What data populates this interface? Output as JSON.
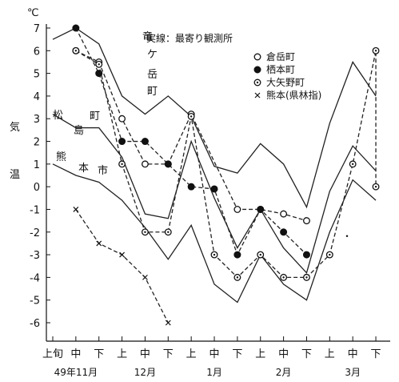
{
  "chart_data": {
    "type": "line",
    "title": "実線：最寄り観測所",
    "ylabel": [
      "気",
      "温"
    ],
    "yunit": "℃",
    "ylim": [
      -6,
      7
    ],
    "yticks": [
      "7",
      "6",
      "5",
      "4",
      "3",
      "2",
      "1",
      "0",
      "-1",
      "-2",
      "-3",
      "-4",
      "-5",
      "-6"
    ],
    "categories": [
      "上旬",
      "中",
      "下",
      "上",
      "中",
      "下",
      "上",
      "中",
      "下",
      "上",
      "中",
      "下",
      "上",
      "中",
      "下"
    ],
    "months": [
      "49年11月",
      "12月",
      "1月",
      "2月",
      "3月"
    ],
    "solid_series": [
      {
        "name": "竜ケ岳町",
        "values": [
          6.5,
          7.0,
          6.3,
          4.0,
          3.2,
          4.0,
          3.1,
          0.9,
          0.6,
          1.9,
          1.0,
          -0.9,
          2.8,
          5.5,
          4.0
        ]
      },
      {
        "name": "松島町",
        "values": [
          3.2,
          2.6,
          2.6,
          1.3,
          -1.2,
          -1.4,
          2.0,
          -0.5,
          -2.7,
          -1.0,
          -2.7,
          -3.8,
          -0.2,
          1.8,
          0.7
        ]
      },
      {
        "name": "熊本市",
        "values": [
          1.0,
          0.5,
          0.2,
          -0.6,
          -1.8,
          -3.2,
          -1.7,
          -4.3,
          -5.1,
          -3.0,
          -4.3,
          -5.0,
          -2.0,
          0.3,
          -0.6
        ]
      }
    ],
    "dashed_series": [
      {
        "name": "倉岳町",
        "marker": "open",
        "values": [
          6.0,
          5.5,
          3.0,
          1.0,
          1.0,
          3.2,
          -1.0,
          -1.0,
          -1.2,
          -1.5
        ]
      },
      {
        "name": "栖本町",
        "marker": "filled",
        "values": [
          7.0,
          5.0,
          2.0,
          2.0,
          1.0,
          0.0,
          -0.1,
          -3.0,
          -1.0,
          -2.0,
          -3.0
        ]
      },
      {
        "name": "大矢野町",
        "marker": "dot",
        "values": [
          6.0,
          5.4,
          1.0,
          -2.0,
          -2.0,
          3.1,
          -3.0,
          -4.0,
          -3.0,
          -4.0,
          -4.0,
          -3.0,
          1.0,
          6.0,
          0.0
        ]
      },
      {
        "name": "熊本(県林指)",
        "marker": "x",
        "values": [
          -1.0,
          -2.5,
          -3.0,
          -4.0,
          -6.0
        ]
      }
    ],
    "legend": [
      "倉岳町",
      "栖本町",
      "大矢野町",
      "熊本(県林指)"
    ],
    "series_labels": [
      {
        "name": "竜ケ岳町",
        "chars": [
          "竜",
          "ケ",
          "岳",
          "町"
        ]
      },
      {
        "name": "松島町",
        "chars": [
          "松",
          "島",
          "町"
        ]
      },
      {
        "name": "熊本市",
        "chars": [
          "熊",
          "本",
          "市"
        ]
      }
    ],
    "stray_mark": "・"
  }
}
